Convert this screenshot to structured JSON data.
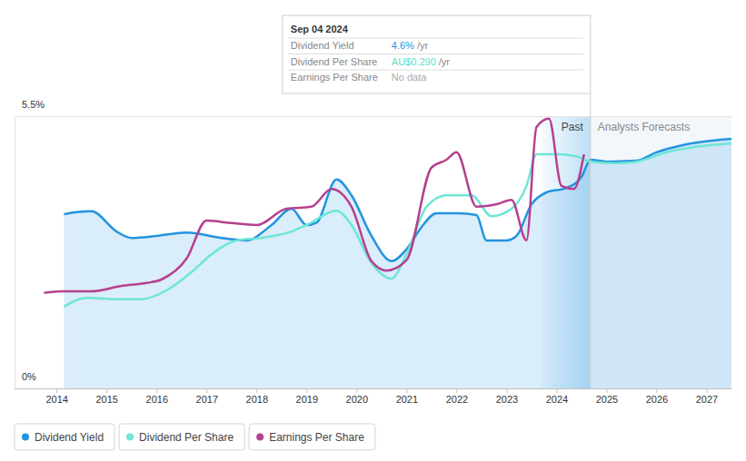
{
  "chart_data": {
    "type": "line",
    "xlim": [
      2013.16,
      2027.5
    ],
    "xticks": [
      2014,
      2015,
      2016,
      2017,
      2018,
      2019,
      2020,
      2021,
      2022,
      2023,
      2024,
      2025,
      2026,
      2027
    ],
    "ylim": [
      0,
      5.5
    ],
    "yticks": [
      {
        "value": 0,
        "label": "0%"
      },
      {
        "value": 5.5,
        "label": "5.5%"
      }
    ],
    "grid": true,
    "legend": "bottom",
    "series": [
      {
        "name": "Dividend Yield",
        "color": "#2394df",
        "type": "area",
        "x": [
          2014.15,
          2014.4,
          2014.7,
          2015.2,
          2015.5,
          2016.0,
          2016.6,
          2017.3,
          2017.8,
          2018.3,
          2018.7,
          2019.0,
          2019.2,
          2019.6,
          2019.9,
          2020.3,
          2020.7,
          2021.0,
          2021.3,
          2021.6,
          2022.0,
          2022.4,
          2022.6,
          2023.0,
          2023.2,
          2023.5,
          2023.8,
          2024.2,
          2024.5,
          2024.68,
          2025.0,
          2025.6,
          2026.0,
          2026.5,
          2027.5
        ],
        "values": [
          3.52,
          3.56,
          3.58,
          3.17,
          3.04,
          3.08,
          3.15,
          3.04,
          2.99,
          3.3,
          3.63,
          3.3,
          3.35,
          4.22,
          3.9,
          3.08,
          2.57,
          2.81,
          3.26,
          3.54,
          3.54,
          3.5,
          2.99,
          2.99,
          3.08,
          3.72,
          3.96,
          4.05,
          4.27,
          4.62,
          4.58,
          4.6,
          4.77,
          4.91,
          5.04
        ]
      },
      {
        "name": "Dividend Per Share",
        "color": "#6ee6d6",
        "type": "line",
        "x": [
          2014.15,
          2014.6,
          2015.2,
          2015.7,
          2016.2,
          2016.7,
          2017.1,
          2017.6,
          2018.1,
          2018.7,
          2019.0,
          2019.6,
          2019.9,
          2020.3,
          2020.7,
          2021.0,
          2021.4,
          2021.8,
          2022.3,
          2022.7,
          2023.1,
          2023.4,
          2023.6,
          2024.0,
          2024.4,
          2024.68,
          2025.2,
          2025.6,
          2026.2,
          2027.5
        ],
        "values": [
          1.65,
          1.83,
          1.8,
          1.8,
          1.98,
          2.35,
          2.71,
          2.99,
          3.04,
          3.17,
          3.3,
          3.59,
          3.3,
          2.53,
          2.22,
          2.71,
          3.67,
          3.9,
          3.9,
          3.48,
          3.63,
          4.09,
          4.73,
          4.73,
          4.69,
          4.58,
          4.55,
          4.58,
          4.77,
          4.95
        ]
      },
      {
        "name": "Earnings Per Share",
        "color": "#b5408f",
        "type": "line",
        "x": [
          2013.75,
          2014.1,
          2014.7,
          2015.3,
          2015.8,
          2016.1,
          2016.6,
          2017.0,
          2017.5,
          2018.0,
          2018.6,
          2019.1,
          2019.5,
          2019.9,
          2020.3,
          2020.6,
          2021.0,
          2021.5,
          2021.8,
          2022.0,
          2022.4,
          2022.8,
          2023.1,
          2023.4,
          2023.6,
          2023.85,
          2024.1,
          2024.35,
          2024.55
        ],
        "values": [
          1.93,
          1.96,
          1.96,
          2.07,
          2.13,
          2.2,
          2.62,
          3.39,
          3.34,
          3.3,
          3.63,
          3.67,
          4.03,
          3.67,
          2.57,
          2.38,
          2.59,
          4.46,
          4.62,
          4.77,
          3.67,
          3.72,
          3.81,
          2.99,
          5.28,
          5.45,
          4.09,
          4.03,
          4.73
        ]
      }
    ],
    "regions": [
      {
        "label": "Past",
        "x": [
          2023.7,
          2024.68
        ]
      },
      {
        "label": "Analysts Forecasts",
        "x": [
          2024.68,
          2027.5
        ]
      }
    ],
    "tooltip": {
      "title": "Sep 04 2024",
      "x": 2024.68,
      "rows": [
        {
          "label": "Dividend Yield",
          "value": "4.6%",
          "unit": "/yr",
          "color": "#2394df"
        },
        {
          "label": "Dividend Per Share",
          "value": "AU$0.290",
          "unit": "/yr",
          "color": "#5fdcc9"
        },
        {
          "label": "Earnings Per Share",
          "value": "No data",
          "color": "#aaaaaa"
        }
      ]
    }
  }
}
